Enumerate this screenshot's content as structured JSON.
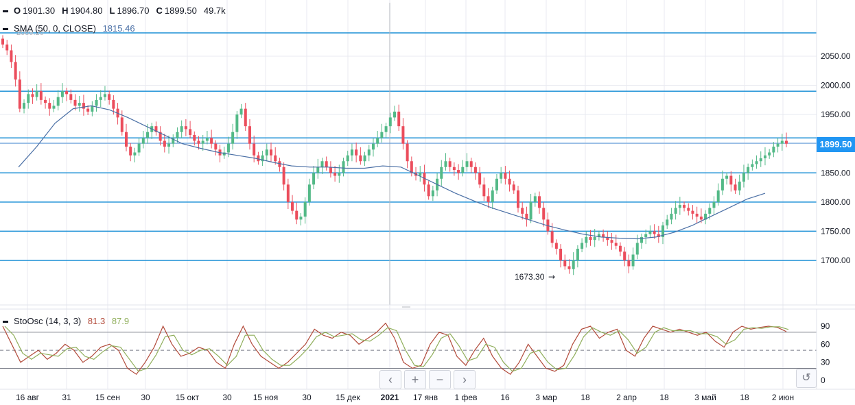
{
  "ohlc": {
    "o_key": "O",
    "o_val": "1901.30",
    "h_key": "H",
    "h_val": "1904.80",
    "l_key": "L",
    "l_val": "1896.70",
    "c_key": "C",
    "c_val": "1899.50",
    "volume": "49.7k"
  },
  "sma": {
    "label": "SMA (50, 0, CLOSE)",
    "value": "1815.46",
    "color": "#4a6fa5"
  },
  "stoch": {
    "label": "StoOsc (14, 3, 3)",
    "k_value": "81.3",
    "d_value": "87.9",
    "k_color": "#b24a3a",
    "d_color": "#8fae5a"
  },
  "price_axis": {
    "ticks": [
      "2050.00",
      "2000.00",
      "1950.00",
      "1900.00",
      "1850.00",
      "1800.00",
      "1750.00",
      "1700.00"
    ],
    "current": "1899.50"
  },
  "osc_axis": {
    "ticks": [
      "90",
      "60",
      "30",
      "0"
    ]
  },
  "time_axis": {
    "ticks": [
      "16 авг",
      "31",
      "15 сен",
      "30",
      "15 окт",
      "30",
      "15 ноя",
      "30",
      "15 дек",
      "2021",
      "17 янв",
      "1 фев",
      "16",
      "3 мар",
      "18",
      "2 апр",
      "18",
      "3 май",
      "18",
      "2 июн"
    ]
  },
  "annotations": {
    "low_label": "1673.30",
    "partial_top_label": "2089.20"
  },
  "nav": {
    "back": "‹",
    "plus": "+",
    "minus": "−",
    "forward": "›",
    "reset": "↺"
  },
  "colors": {
    "up": "#53b987",
    "down": "#eb4d5c",
    "level_line": "#1a8fd6",
    "grid": "#e8eaf0",
    "badge": "#2196f3"
  },
  "chart_data": {
    "type": "candlestick",
    "horizontal_levels": [
      2090,
      1990,
      1910,
      1850,
      1800,
      1750,
      1700
    ],
    "price_range": [
      1640,
      2120
    ],
    "stoch_levels": [
      80,
      50,
      20
    ],
    "stoch_range": [
      -10,
      105
    ],
    "close_series": [
      2070,
      2060,
      2040,
      2010,
      1960,
      1970,
      1985,
      1980,
      1990,
      1975,
      1970,
      1960,
      1965,
      1980,
      1990,
      1985,
      1975,
      1965,
      1970,
      1960,
      1955,
      1965,
      1975,
      1980,
      1985,
      1975,
      1960,
      1945,
      1920,
      1895,
      1880,
      1885,
      1900,
      1910,
      1920,
      1930,
      1920,
      1905,
      1895,
      1900,
      1910,
      1920,
      1930,
      1925,
      1915,
      1905,
      1900,
      1905,
      1910,
      1900,
      1890,
      1880,
      1885,
      1900,
      1920,
      1950,
      1960,
      1930,
      1900,
      1880,
      1870,
      1880,
      1890,
      1880,
      1870,
      1860,
      1830,
      1800,
      1785,
      1770,
      1775,
      1800,
      1830,
      1850,
      1860,
      1870,
      1860,
      1850,
      1845,
      1850,
      1870,
      1880,
      1890,
      1880,
      1870,
      1880,
      1890,
      1900,
      1910,
      1920,
      1930,
      1945,
      1955,
      1930,
      1900,
      1870,
      1850,
      1845,
      1850,
      1830,
      1810,
      1820,
      1840,
      1860,
      1870,
      1860,
      1855,
      1850,
      1860,
      1870,
      1860,
      1850,
      1830,
      1810,
      1800,
      1820,
      1840,
      1850,
      1840,
      1830,
      1820,
      1790,
      1780,
      1770,
      1800,
      1810,
      1790,
      1770,
      1750,
      1730,
      1720,
      1700,
      1690,
      1685,
      1700,
      1720,
      1730,
      1740,
      1735,
      1740,
      1745,
      1740,
      1735,
      1730,
      1725,
      1715,
      1700,
      1690,
      1710,
      1730,
      1740,
      1745,
      1750,
      1745,
      1740,
      1760,
      1770,
      1780,
      1790,
      1795,
      1790,
      1785,
      1780,
      1775,
      1770,
      1780,
      1790,
      1800,
      1820,
      1840,
      1845,
      1830,
      1820,
      1835,
      1850,
      1860,
      1865,
      1870,
      1875,
      1880,
      1885,
      1895,
      1900,
      1905,
      1900
    ],
    "sma_series": [
      1860,
      1895,
      1935,
      1960,
      1965,
      1958,
      1945,
      1930,
      1915,
      1900,
      1892,
      1885,
      1880,
      1875,
      1868,
      1862,
      1860,
      1860,
      1858,
      1858,
      1862,
      1860,
      1845,
      1830,
      1815,
      1802,
      1790,
      1780,
      1770,
      1760,
      1752,
      1745,
      1740,
      1738,
      1737,
      1740,
      1748,
      1760,
      1775,
      1790,
      1805,
      1815
    ],
    "stoch_k": [
      90,
      60,
      30,
      40,
      50,
      35,
      45,
      60,
      50,
      30,
      40,
      55,
      60,
      50,
      20,
      10,
      30,
      55,
      90,
      60,
      40,
      45,
      55,
      50,
      30,
      20,
      60,
      90,
      60,
      40,
      30,
      20,
      30,
      45,
      60,
      85,
      75,
      70,
      80,
      75,
      60,
      70,
      80,
      95,
      70,
      30,
      20,
      25,
      60,
      80,
      75,
      40,
      25,
      50,
      70,
      40,
      20,
      10,
      30,
      60,
      40,
      20,
      15,
      25,
      60,
      85,
      90,
      70,
      80,
      85,
      50,
      40,
      70,
      90,
      85,
      80,
      85,
      80,
      75,
      80,
      65,
      55,
      80,
      90,
      85,
      88,
      90,
      88,
      81
    ]
  }
}
